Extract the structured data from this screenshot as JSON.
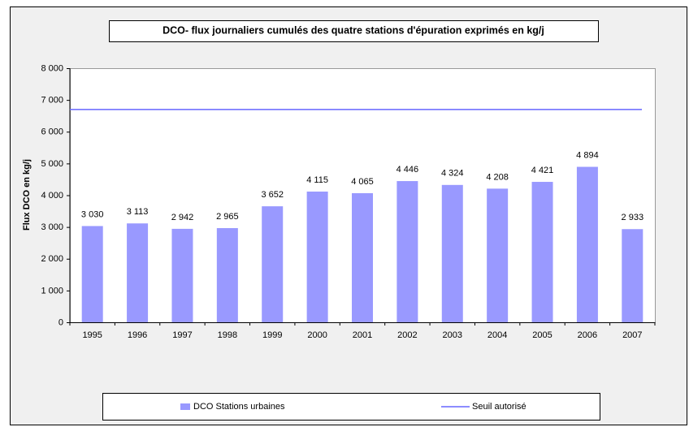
{
  "chart_data": {
    "type": "bar",
    "title": "DCO- flux journaliers  cumulés des quatre stations d'épuration exprimés en kg/j",
    "y_label": "Flux DCO en kg/j",
    "categories": [
      "1995",
      "1996",
      "1997",
      "1998",
      "1999",
      "2000",
      "2001",
      "2002",
      "2003",
      "2004",
      "2005",
      "2006",
      "2007"
    ],
    "series": [
      {
        "name": "DCO Stations urbaines",
        "color": "#9999ff",
        "values": [
          3030,
          3113,
          2942,
          2965,
          3652,
          4115,
          4065,
          4446,
          4324,
          4208,
          4421,
          4894,
          2933
        ],
        "value_labels": [
          "3 030",
          "3 113",
          "2 942",
          "2 965",
          "3 652",
          "4 115",
          "4 065",
          "4 446",
          "4 324",
          "4 208",
          "4 421",
          "4 894",
          "2 933"
        ]
      }
    ],
    "threshold": {
      "name": "Seuil autorisé",
      "color": "#6666ff",
      "value": 6700
    },
    "ylim": [
      0,
      8000
    ],
    "yticks": [
      0,
      {
        "value": 1000,
        "label": "1 000"
      },
      {
        "value": 2000,
        "label": "2 000"
      },
      {
        "value": 3000,
        "label": "3 000"
      },
      {
        "value": 4000,
        "label": "4 000"
      },
      {
        "value": 5000,
        "label": "5 000"
      },
      {
        "value": 6000,
        "label": "6 000"
      },
      {
        "value": 7000,
        "label": "7 000"
      },
      {
        "value": 8000,
        "label": "8 000"
      }
    ],
    "grid": false,
    "legend": "bottom"
  }
}
